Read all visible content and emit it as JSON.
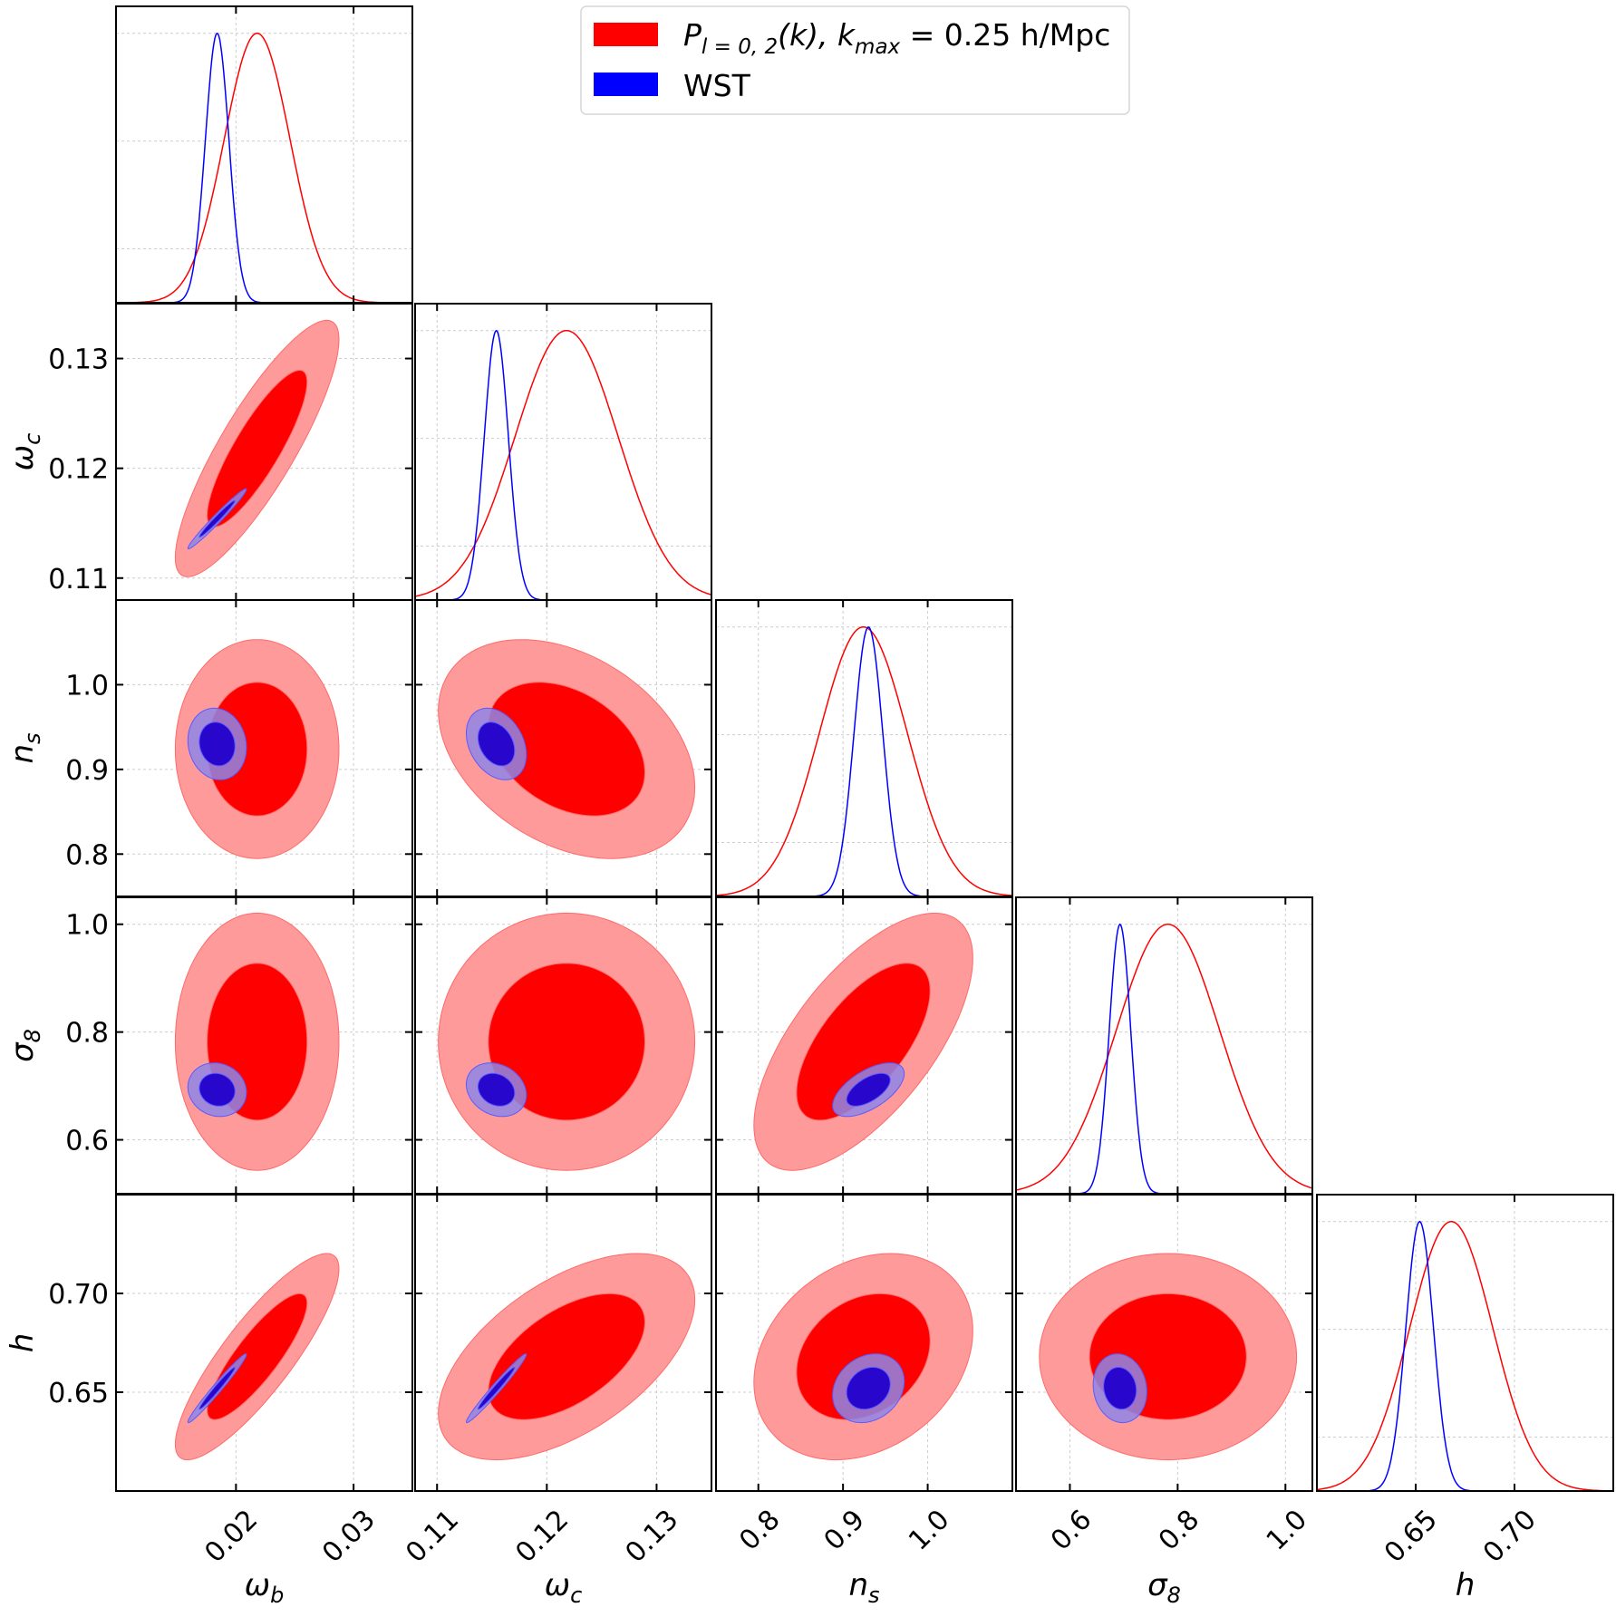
{
  "chart_data": {
    "type": "corner",
    "legend": {
      "placement": "top-center",
      "entries": [
        {
          "label_main": "P",
          "label_sub": "l = 0, 2",
          "label_mid": "(k), k",
          "label_sub2": "max",
          "label_end": " = 0.25 h/Mpc",
          "color": "#ff0000"
        },
        {
          "label_main": "WST",
          "color": "#0000ff"
        }
      ]
    },
    "parameters": [
      {
        "symbol": "ω",
        "sub": "b",
        "range": [
          0.0098,
          0.035
        ],
        "ticks": [
          0.02,
          0.03
        ],
        "tick_labels": [
          "0.02",
          "0.03"
        ]
      },
      {
        "symbol": "ω",
        "sub": "c",
        "range": [
          0.108,
          0.135
        ],
        "ticks": [
          0.11,
          0.12,
          0.13
        ],
        "tick_labels": [
          "0.11",
          "0.12",
          "0.13"
        ]
      },
      {
        "symbol": "n",
        "sub": "s",
        "range": [
          0.75,
          1.1
        ],
        "ticks": [
          0.8,
          0.9,
          1.0
        ],
        "tick_labels": [
          "0.8",
          "0.9",
          "1.0"
        ]
      },
      {
        "symbol": "σ",
        "sub": "8",
        "range": [
          0.5,
          1.05
        ],
        "ticks": [
          0.6,
          0.8,
          1.0
        ],
        "tick_labels": [
          "0.6",
          "0.8",
          "1.0"
        ]
      },
      {
        "symbol": "h",
        "sub": "",
        "range": [
          0.6,
          0.75
        ],
        "ticks": [
          0.65,
          0.7
        ],
        "tick_labels": [
          "0.65",
          "0.70"
        ]
      }
    ],
    "series": [
      {
        "name": "P_{l=0,2}(k), k_max = 0.25 h/Mpc",
        "color": "#ff0000",
        "fill_inner": "#ff0000",
        "fill_outer": "#ff9a9a",
        "means": [
          0.0218,
          0.1218,
          0.924,
          0.782,
          0.668
        ],
        "sigmas": [
          0.0028,
          0.0047,
          0.052,
          0.096,
          0.021
        ],
        "correlations": [
          [
            1,
            0.85,
            0,
            0,
            0.85
          ],
          [
            0.85,
            1,
            -0.35,
            0,
            0.55
          ],
          [
            0,
            -0.35,
            1,
            0.65,
            0.25
          ],
          [
            0,
            0,
            0.65,
            1,
            0
          ],
          [
            0.85,
            0.55,
            0.25,
            0,
            1
          ]
        ]
      },
      {
        "name": "WST",
        "color": "#0000ff",
        "fill_inner": "#2200cc",
        "fill_outer": "#8f86e6",
        "means": [
          0.0184,
          0.1154,
          0.93,
          0.693,
          0.652
        ],
        "sigmas": [
          0.001,
          0.0011,
          0.017,
          0.02,
          0.007
        ],
        "correlations": [
          [
            1,
            0.98,
            -0.1,
            -0.1,
            0.98
          ],
          [
            0.98,
            1,
            -0.3,
            -0.2,
            0.98
          ],
          [
            -0.1,
            -0.3,
            1,
            0.6,
            0.2
          ],
          [
            -0.1,
            -0.2,
            0.6,
            1,
            -0.1
          ],
          [
            0.98,
            0.98,
            0.2,
            -0.1,
            1
          ]
        ]
      }
    ],
    "contour_levels": [
      "68%",
      "95%"
    ],
    "grid": true
  }
}
